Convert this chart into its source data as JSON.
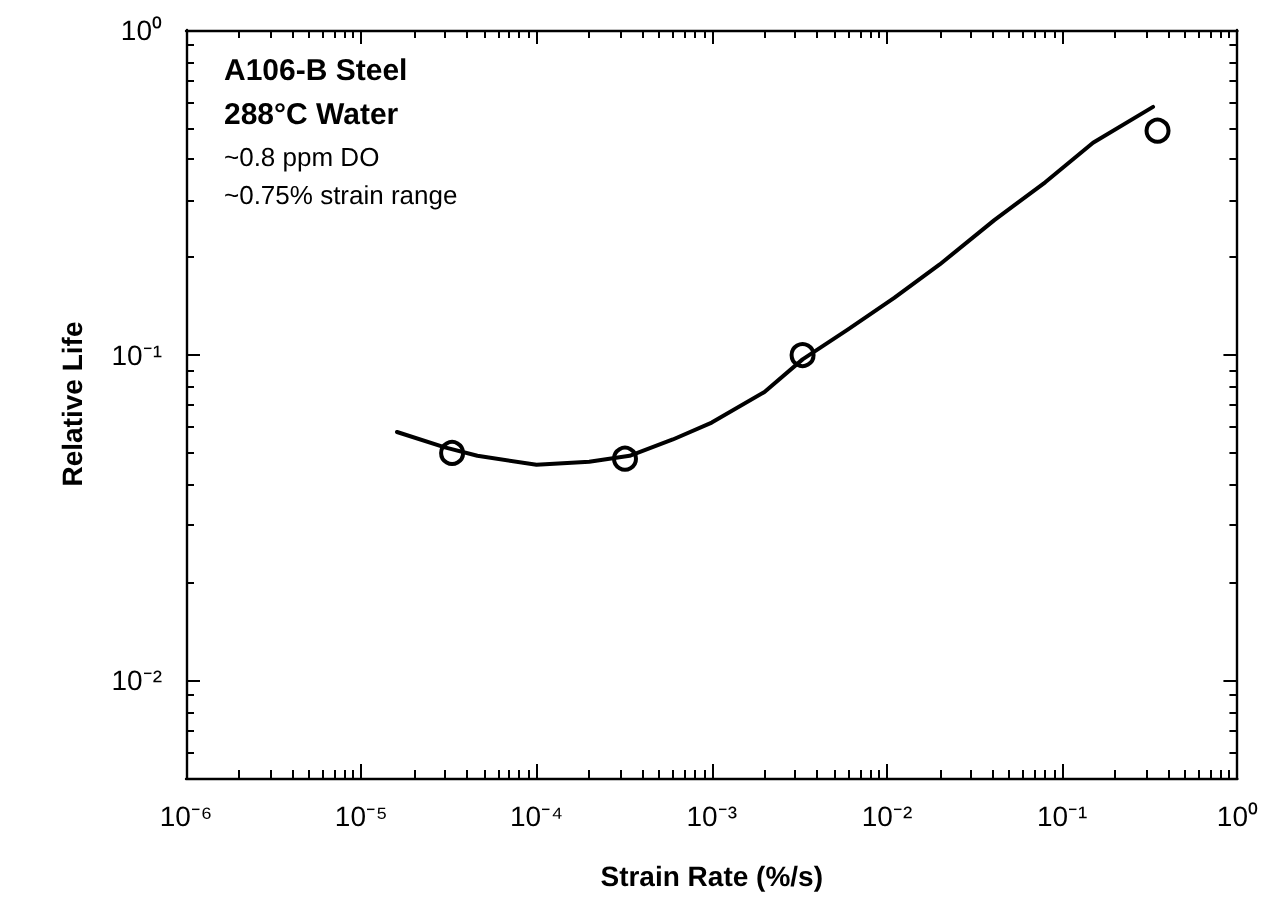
{
  "chart_data": {
    "type": "scatter",
    "xlabel": "Strain Rate (%/s)",
    "ylabel": "Relative Life",
    "log": "xy",
    "grid": false,
    "xlim": [
      1e-06,
      1
    ],
    "ylim": [
      0.005,
      1
    ],
    "xticks": [
      {
        "value": 1e-06,
        "label": "10⁻⁶"
      },
      {
        "value": 1e-05,
        "label": "10⁻⁵"
      },
      {
        "value": 0.0001,
        "label": "10⁻⁴"
      },
      {
        "value": 0.001,
        "label": "10⁻³"
      },
      {
        "value": 0.01,
        "label": "10⁻²"
      },
      {
        "value": 0.1,
        "label": "10⁻¹"
      },
      {
        "value": 1,
        "label": "10⁰"
      }
    ],
    "yticks": [
      {
        "value": 0.01,
        "label": "10⁻²"
      },
      {
        "value": 0.1,
        "label": "10⁻¹"
      },
      {
        "value": 1,
        "label": "10⁰"
      }
    ],
    "annotations": [
      "A106-B Steel",
      "288°C Water",
      "~0.8 ppm DO",
      "~0.75% strain range"
    ],
    "series": [
      {
        "type": "scatter",
        "marker": "circle",
        "color": "#000000",
        "x": [
          3.3e-05,
          0.00032,
          0.0033,
          0.35
        ],
        "values": [
          0.05,
          0.048,
          0.1,
          0.49
        ]
      },
      {
        "type": "line",
        "marker": "none",
        "line_style": "solid",
        "color": "#000000",
        "x": [
          1.6e-05,
          3e-05,
          4.6e-05,
          0.0001,
          0.0002,
          0.00034,
          0.0006,
          0.001,
          0.002,
          0.0033,
          0.006,
          0.011,
          0.02,
          0.041,
          0.08,
          0.15,
          0.33
        ],
        "values": [
          0.058,
          0.052,
          0.049,
          0.046,
          0.047,
          0.049,
          0.055,
          0.062,
          0.077,
          0.097,
          0.12,
          0.15,
          0.19,
          0.26,
          0.34,
          0.45,
          0.58
        ]
      }
    ]
  }
}
